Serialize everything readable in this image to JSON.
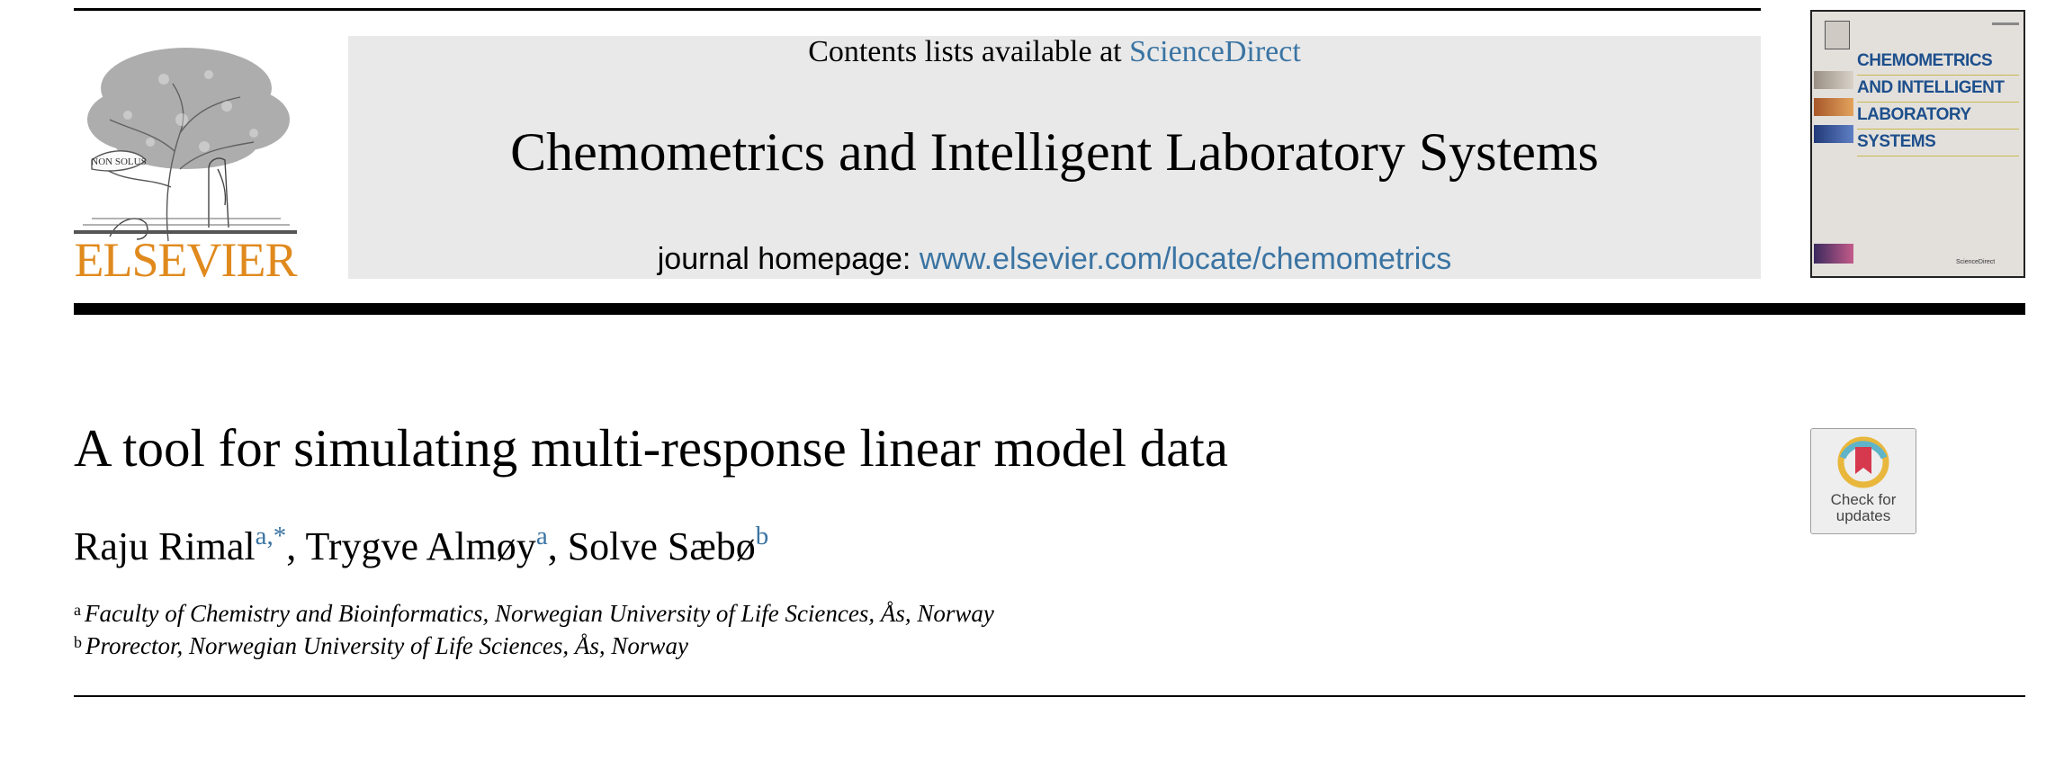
{
  "header": {
    "publisher_wordmark": "ELSEVIER",
    "logo_motto": "NON SOLUS",
    "contents_prefix": "Contents lists available at ",
    "contents_link": "ScienceDirect",
    "journal_title": "Chemometrics and Intelligent Laboratory Systems",
    "homepage_prefix": "journal homepage: ",
    "homepage_link": "www.elsevier.com/locate/chemometrics"
  },
  "cover": {
    "title_lines": [
      "CHEMOMETRICS",
      "AND INTELLIGENT",
      "LABORATORY",
      "SYSTEMS"
    ],
    "footer": "ScienceDirect"
  },
  "article": {
    "title": "A tool for simulating multi-response linear model data",
    "authors": [
      {
        "name": "Raju Rimal",
        "sup": "a,*"
      },
      {
        "name": "Trygve Almøy",
        "sup": "a"
      },
      {
        "name": "Solve Sæbø",
        "sup": "b"
      }
    ],
    "affiliations": [
      {
        "label": "a",
        "text": "Faculty of Chemistry and Bioinformatics, Norwegian University of Life Sciences, Ås, Norway"
      },
      {
        "label": "b",
        "text": "Prorector, Norwegian University of Life Sciences, Ås, Norway"
      }
    ]
  },
  "badge": {
    "line1": "Check for",
    "line2": "updates"
  },
  "colors": {
    "link": "#3a74a3",
    "elsevier_orange": "#e08a1e",
    "banner_bg": "#e9e9e9",
    "cover_title": "#1d4f8c"
  }
}
